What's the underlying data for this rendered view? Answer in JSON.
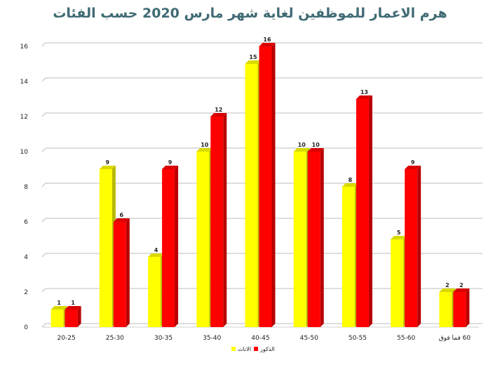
{
  "colors": {
    "series_female": "#ffff00",
    "series_male": "#ff0000",
    "grid": "#bdbdbd",
    "title": "#3f6a73"
  },
  "chart_data": {
    "type": "bar",
    "title": "هرم الاعمار للموظفين لغاية شهر مارس 2020 حسب الفئات",
    "xlabel": "",
    "ylabel": "",
    "categories": [
      "20-25",
      "25-30",
      "30-35",
      "35-40",
      "40-45",
      "45-50",
      "50-55",
      "55-60",
      "60 فما فوق"
    ],
    "series": [
      {
        "name": "الاناث",
        "values": [
          1,
          9,
          4,
          10,
          15,
          10,
          8,
          5,
          2
        ]
      },
      {
        "name": "الذكور",
        "values": [
          1,
          6,
          9,
          12,
          16,
          10,
          13,
          9,
          2
        ]
      }
    ],
    "ylim": [
      0,
      16
    ],
    "yticks": [
      0,
      2,
      4,
      6,
      8,
      10,
      12,
      14,
      16
    ],
    "grid": true,
    "legend_position": "bottom",
    "style": "3d-bar"
  }
}
